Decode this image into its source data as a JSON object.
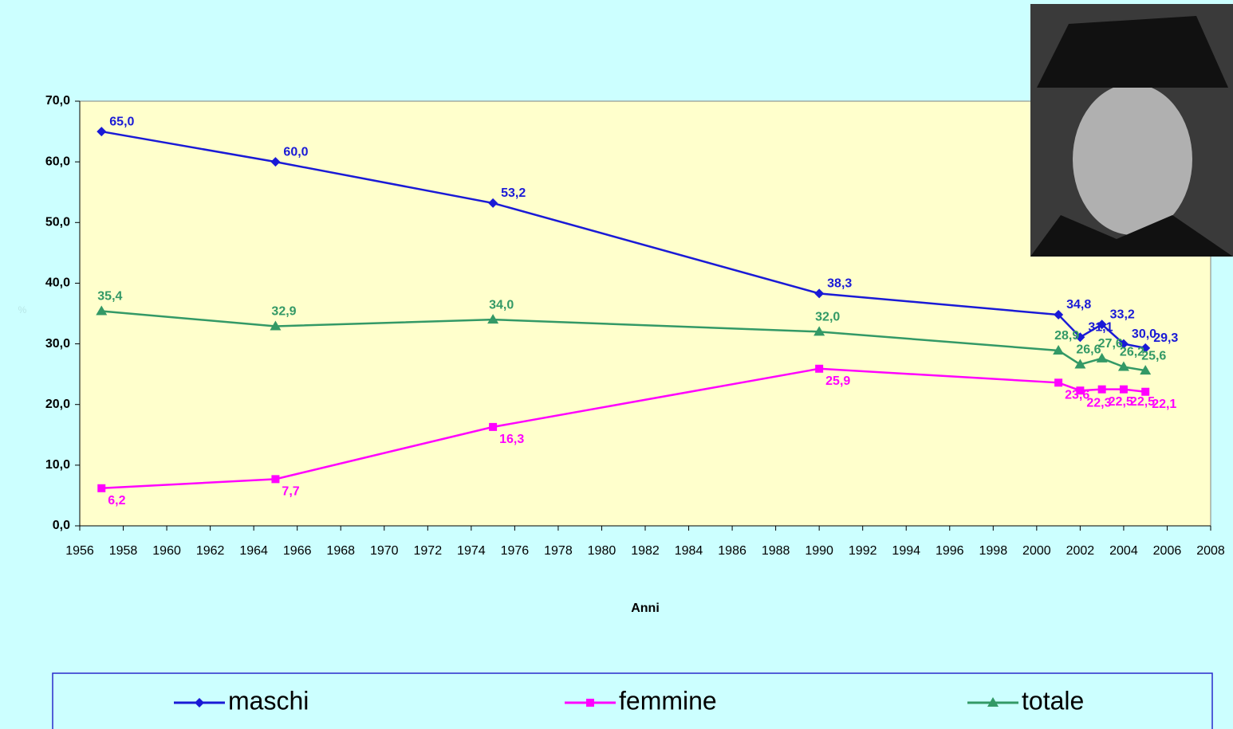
{
  "chart_data": {
    "type": "line",
    "xlabel": "Anni",
    "ylabel": "%",
    "x": [
      1957,
      1965,
      1975,
      1990,
      2001,
      2002,
      2003,
      2004,
      2005
    ],
    "series": [
      {
        "name": "maschi",
        "color": "#1a1ad6",
        "marker": "diamond",
        "values": [
          65.0,
          60.0,
          53.2,
          38.3,
          34.8,
          31.1,
          33.2,
          30.0,
          29.3
        ],
        "value_labels": [
          "65,0",
          "60,0",
          "53,2",
          "38,3",
          "34,8",
          "31,1",
          "33,2",
          "30,0",
          "29,3"
        ]
      },
      {
        "name": "femmine",
        "color": "#ff00ff",
        "marker": "square",
        "values": [
          6.2,
          7.7,
          16.3,
          25.9,
          23.6,
          22.3,
          22.5,
          22.5,
          22.1
        ],
        "value_labels": [
          "6,2",
          "7,7",
          "16,3",
          "25,9",
          "23,6",
          "22,3",
          "22,5",
          "22,5",
          "22,1"
        ]
      },
      {
        "name": "totale",
        "color": "#339966",
        "marker": "triangle",
        "values": [
          35.4,
          32.9,
          34.0,
          32.0,
          28.9,
          26.6,
          27.6,
          26.2,
          25.6
        ],
        "value_labels": [
          "35,4",
          "32,9",
          "34,0",
          "32,0",
          "28,9",
          "26,6",
          "27,6",
          "26,2",
          "25,6"
        ]
      }
    ],
    "xlim": [
      1956,
      2008
    ],
    "xticks": [
      1956,
      1958,
      1960,
      1962,
      1964,
      1966,
      1968,
      1970,
      1972,
      1974,
      1976,
      1978,
      1980,
      1982,
      1984,
      1986,
      1988,
      1990,
      1992,
      1994,
      1996,
      1998,
      2000,
      2002,
      2004,
      2006,
      2008
    ],
    "ylim": [
      0,
      70
    ],
    "yticks": [
      {
        "value": 0,
        "label": "0,0"
      },
      {
        "value": 10,
        "label": "10,0"
      },
      {
        "value": 20,
        "label": "20,0"
      },
      {
        "value": 30,
        "label": "30,0"
      },
      {
        "value": 40,
        "label": "40,0"
      },
      {
        "value": 50,
        "label": "50,0"
      },
      {
        "value": 60,
        "label": "60,0"
      },
      {
        "value": 70,
        "label": "70,0"
      }
    ],
    "legend": "bottom"
  }
}
